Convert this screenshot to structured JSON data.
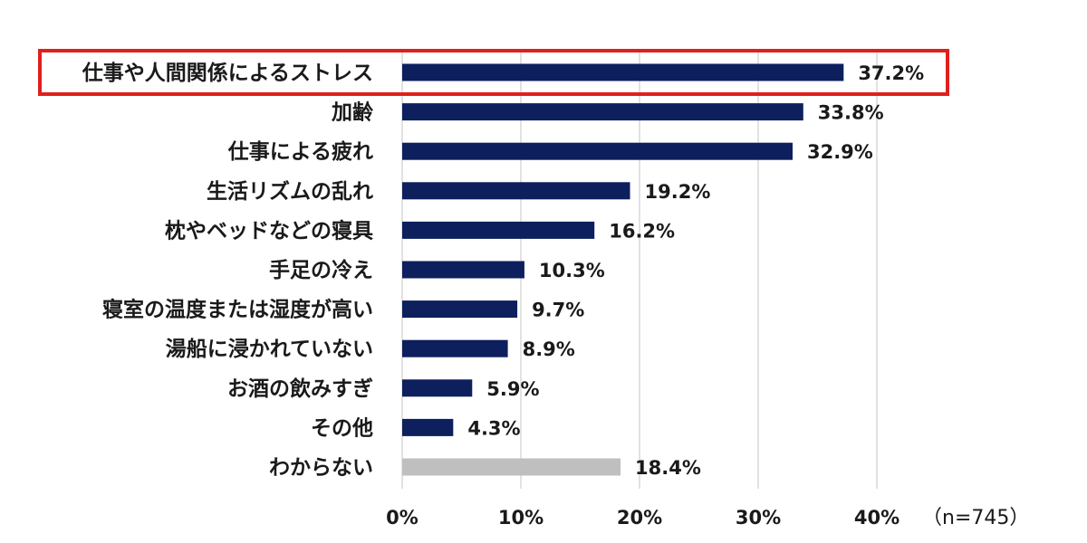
{
  "chart_data": {
    "type": "bar",
    "orientation": "horizontal",
    "categories": [
      "仕事や人間関係によるストレス",
      "加齢",
      "仕事による疲れ",
      "生活リズムの乱れ",
      "枕やベッドなどの寝具",
      "手足の冷え",
      "寝室の温度または湿度が高い",
      "湯船に浸かれていない",
      "お酒の飲みすぎ",
      "その他",
      "わからない"
    ],
    "values": [
      37.2,
      33.8,
      32.9,
      19.2,
      16.2,
      10.3,
      9.7,
      8.9,
      5.9,
      4.3,
      18.4
    ],
    "value_labels": [
      "37.2%",
      "33.8%",
      "32.9%",
      "19.2%",
      "16.2%",
      "10.3%",
      "9.7%",
      "8.9%",
      "5.9%",
      "4.3%",
      "18.4%"
    ],
    "bar_colors": [
      "#0d1f5c",
      "#0d1f5c",
      "#0d1f5c",
      "#0d1f5c",
      "#0d1f5c",
      "#0d1f5c",
      "#0d1f5c",
      "#0d1f5c",
      "#0d1f5c",
      "#0d1f5c",
      "#bfbfbf"
    ],
    "highlighted_category": "仕事や人間関係によるストレス",
    "highlight_color": "#e0201b",
    "x_ticks": [
      "0%",
      "10%",
      "20%",
      "30%",
      "40%"
    ],
    "xlim": [
      0,
      40
    ],
    "grid": true,
    "sample_note": "（n=745）",
    "title": "",
    "xlabel": "",
    "ylabel": ""
  }
}
